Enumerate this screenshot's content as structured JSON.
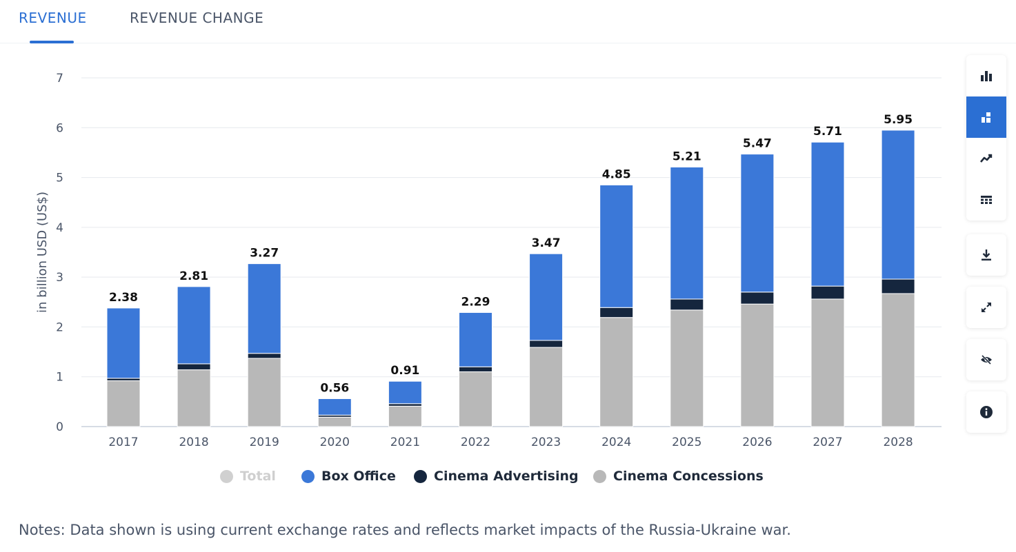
{
  "tabs": [
    {
      "label": "REVENUE",
      "active": true
    },
    {
      "label": "REVENUE CHANGE",
      "active": false
    }
  ],
  "toolbar": {
    "icons": [
      "bar-chart-icon",
      "stacked-bar-icon",
      "line-chart-icon",
      "table-icon",
      "download-icon",
      "fullscreen-icon",
      "hide-icon",
      "info-icon"
    ],
    "active": "stacked-bar-icon",
    "accent": "#2b6fd3"
  },
  "chart_data": {
    "type": "bar",
    "stacked": true,
    "categories": [
      "2017",
      "2018",
      "2019",
      "2020",
      "2021",
      "2022",
      "2023",
      "2024",
      "2025",
      "2026",
      "2027",
      "2028"
    ],
    "series": [
      {
        "name": "Cinema Concessions",
        "color": "#b8b8b8",
        "values": [
          0.92,
          1.14,
          1.37,
          0.19,
          0.41,
          1.1,
          1.59,
          2.19,
          2.34,
          2.46,
          2.56,
          2.67
        ]
      },
      {
        "name": "Cinema Advertising",
        "color": "#15263e",
        "values": [
          0.05,
          0.12,
          0.1,
          0.04,
          0.05,
          0.1,
          0.14,
          0.2,
          0.22,
          0.24,
          0.26,
          0.29
        ]
      },
      {
        "name": "Box Office",
        "color": "#3b78d8",
        "values": [
          1.41,
          1.55,
          1.8,
          0.33,
          0.45,
          1.09,
          1.74,
          2.46,
          2.65,
          2.77,
          2.89,
          2.99
        ]
      }
    ],
    "totals": [
      "2.38",
      "2.81",
      "3.27",
      "0.56",
      "0.91",
      "2.29",
      "3.47",
      "4.85",
      "5.21",
      "5.47",
      "5.71",
      "5.95"
    ],
    "legend": [
      {
        "label": "Total",
        "color": "#d0d0d0",
        "muted": true
      },
      {
        "label": "Box Office",
        "color": "#3b78d8",
        "muted": false
      },
      {
        "label": "Cinema Advertising",
        "color": "#15263e",
        "muted": false
      },
      {
        "label": "Cinema Concessions",
        "color": "#b8b8b8",
        "muted": false
      }
    ],
    "ylabel": "in billion USD (US$)",
    "ylim": [
      0,
      7
    ],
    "yticks": [
      0,
      1,
      2,
      3,
      4,
      5,
      6,
      7
    ],
    "grid": true
  },
  "notes": "Notes: Data shown is using current exchange rates and reflects market impacts of the Russia-Ukraine war."
}
